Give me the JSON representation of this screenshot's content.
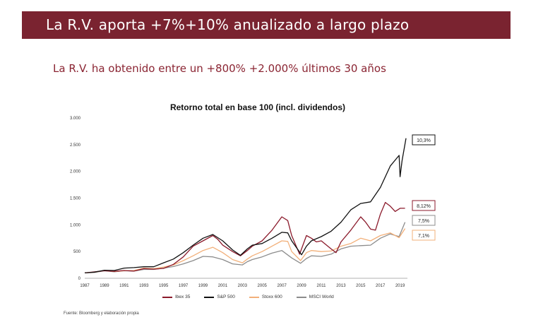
{
  "header": {
    "title": "La R.V. aporta +7%+10% anualizado a largo plazo",
    "subtitle": "La R.V. ha obtenido entre un +800% +2.000% últimos 30 años",
    "banner_color": "#7a2330"
  },
  "source_note": "Fuente: Bloomberg y elaboración propia",
  "chart_data": {
    "type": "line",
    "title": "Retorno total en base 100 (incl. dividendos)",
    "xlabel": "",
    "ylabel": "",
    "ylim": [
      0,
      3000
    ],
    "xlim": [
      1987,
      2019.6
    ],
    "y_ticks": [
      0,
      500,
      1000,
      1500,
      2000,
      2500,
      3000
    ],
    "y_tick_labels": [
      "0",
      "500",
      "1.000",
      "1.500",
      "2.000",
      "2.500",
      "3.000"
    ],
    "x_tick_labels": [
      "1987",
      "1989",
      "1991",
      "1993",
      "1995",
      "1997",
      "1999",
      "2001",
      "2003",
      "2005",
      "2007",
      "2009",
      "2011",
      "2013",
      "2015",
      "2017",
      "2019"
    ],
    "grid": false,
    "legend_position": "bottom",
    "series": [
      {
        "name": "Ibex 35",
        "color": "#8b1a2b",
        "end_label": "8,12%",
        "points": [
          [
            1987,
            100
          ],
          [
            1988,
            120
          ],
          [
            1989,
            140
          ],
          [
            1990,
            130
          ],
          [
            1991,
            145
          ],
          [
            1992,
            135
          ],
          [
            1993,
            180
          ],
          [
            1994,
            170
          ],
          [
            1995,
            185
          ],
          [
            1996,
            260
          ],
          [
            1997,
            400
          ],
          [
            1998,
            600
          ],
          [
            1999,
            700
          ],
          [
            2000,
            800
          ],
          [
            2000.5,
            730
          ],
          [
            2001,
            620
          ],
          [
            2002,
            500
          ],
          [
            2002.8,
            420
          ],
          [
            2003.5,
            520
          ],
          [
            2004,
            600
          ],
          [
            2005,
            700
          ],
          [
            2006,
            900
          ],
          [
            2007,
            1150
          ],
          [
            2007.6,
            1080
          ],
          [
            2008,
            800
          ],
          [
            2008.8,
            450
          ],
          [
            2009.5,
            800
          ],
          [
            2010,
            750
          ],
          [
            2010.5,
            680
          ],
          [
            2011,
            700
          ],
          [
            2012,
            550
          ],
          [
            2012.5,
            480
          ],
          [
            2013,
            680
          ],
          [
            2014,
            900
          ],
          [
            2015,
            1150
          ],
          [
            2015.5,
            1050
          ],
          [
            2016,
            920
          ],
          [
            2016.5,
            900
          ],
          [
            2017,
            1200
          ],
          [
            2017.5,
            1420
          ],
          [
            2018,
            1350
          ],
          [
            2018.5,
            1250
          ],
          [
            2019,
            1310
          ],
          [
            2019.5,
            1310
          ]
        ]
      },
      {
        "name": "S&P 500",
        "color": "#111111",
        "end_label": "10,3%",
        "points": [
          [
            1987,
            100
          ],
          [
            1988,
            115
          ],
          [
            1989,
            150
          ],
          [
            1990,
            145
          ],
          [
            1991,
            190
          ],
          [
            1992,
            200
          ],
          [
            1993,
            215
          ],
          [
            1994,
            215
          ],
          [
            1995,
            290
          ],
          [
            1996,
            360
          ],
          [
            1997,
            480
          ],
          [
            1998,
            620
          ],
          [
            1999,
            750
          ],
          [
            2000,
            820
          ],
          [
            2000.5,
            760
          ],
          [
            2001,
            700
          ],
          [
            2002,
            530
          ],
          [
            2002.8,
            430
          ],
          [
            2003.5,
            550
          ],
          [
            2004,
            620
          ],
          [
            2005,
            650
          ],
          [
            2006,
            750
          ],
          [
            2007,
            860
          ],
          [
            2007.6,
            850
          ],
          [
            2008,
            700
          ],
          [
            2009,
            440
          ],
          [
            2009.5,
            600
          ],
          [
            2010,
            700
          ],
          [
            2011,
            780
          ],
          [
            2012,
            880
          ],
          [
            2013,
            1050
          ],
          [
            2014,
            1280
          ],
          [
            2015,
            1400
          ],
          [
            2016,
            1430
          ],
          [
            2017,
            1700
          ],
          [
            2018,
            2100
          ],
          [
            2018.9,
            2300
          ],
          [
            2019,
            1900
          ],
          [
            2019.2,
            2200
          ],
          [
            2019.6,
            2620
          ]
        ]
      },
      {
        "name": "Stoxx 600",
        "color": "#f2b07a",
        "end_label": "7,1%",
        "points": [
          [
            1987,
            100
          ],
          [
            1988,
            115
          ],
          [
            1989,
            145
          ],
          [
            1990,
            125
          ],
          [
            1991,
            140
          ],
          [
            1992,
            145
          ],
          [
            1993,
            190
          ],
          [
            1994,
            180
          ],
          [
            1995,
            210
          ],
          [
            1996,
            250
          ],
          [
            1997,
            330
          ],
          [
            1998,
            420
          ],
          [
            1999,
            520
          ],
          [
            2000,
            580
          ],
          [
            2001,
            480
          ],
          [
            2002,
            350
          ],
          [
            2003,
            290
          ],
          [
            2003.5,
            360
          ],
          [
            2004,
            420
          ],
          [
            2005,
            500
          ],
          [
            2006,
            600
          ],
          [
            2007,
            700
          ],
          [
            2007.6,
            690
          ],
          [
            2008,
            500
          ],
          [
            2008.9,
            330
          ],
          [
            2009.5,
            480
          ],
          [
            2010,
            520
          ],
          [
            2011,
            500
          ],
          [
            2012,
            510
          ],
          [
            2013,
            600
          ],
          [
            2014,
            650
          ],
          [
            2015,
            750
          ],
          [
            2016,
            700
          ],
          [
            2017,
            800
          ],
          [
            2018,
            850
          ],
          [
            2018.9,
            760
          ],
          [
            2019.5,
            930
          ]
        ]
      },
      {
        "name": "MSCI World",
        "color": "#8c8c8c",
        "end_label": "7,5%",
        "points": [
          [
            1987,
            100
          ],
          [
            1988,
            110
          ],
          [
            1989,
            140
          ],
          [
            1990,
            120
          ],
          [
            1991,
            140
          ],
          [
            1992,
            135
          ],
          [
            1993,
            165
          ],
          [
            1994,
            165
          ],
          [
            1995,
            190
          ],
          [
            1996,
            220
          ],
          [
            1997,
            270
          ],
          [
            1998,
            330
          ],
          [
            1999,
            410
          ],
          [
            2000,
            400
          ],
          [
            2001,
            350
          ],
          [
            2002,
            270
          ],
          [
            2003,
            250
          ],
          [
            2003.5,
            310
          ],
          [
            2004,
            350
          ],
          [
            2005,
            400
          ],
          [
            2006,
            470
          ],
          [
            2007,
            520
          ],
          [
            2008,
            380
          ],
          [
            2008.9,
            280
          ],
          [
            2009.5,
            370
          ],
          [
            2010,
            420
          ],
          [
            2011,
            410
          ],
          [
            2012,
            450
          ],
          [
            2013,
            550
          ],
          [
            2014,
            600
          ],
          [
            2015,
            610
          ],
          [
            2016,
            620
          ],
          [
            2017,
            750
          ],
          [
            2018,
            830
          ],
          [
            2018.9,
            780
          ],
          [
            2019.5,
            1050
          ]
        ]
      }
    ]
  }
}
